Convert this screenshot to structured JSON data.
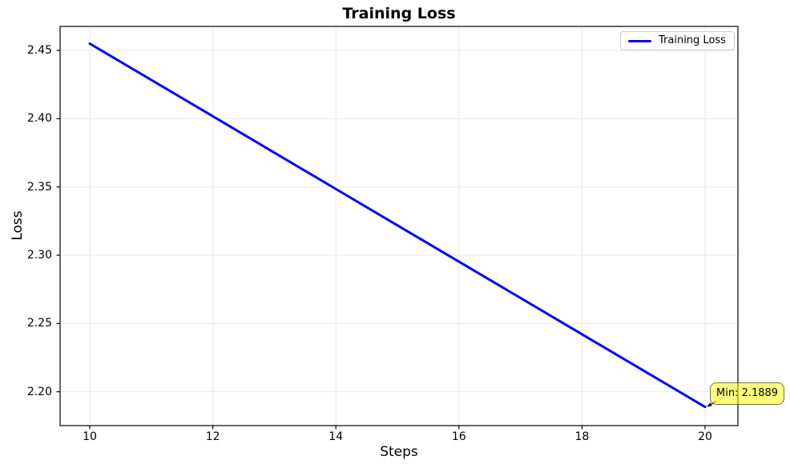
{
  "chart_data": {
    "type": "line",
    "title": "Training Loss",
    "xlabel": "Steps",
    "ylabel": "Loss",
    "series": [
      {
        "name": "Training Loss",
        "color": "#0000ff",
        "x": [
          10,
          12,
          14,
          16,
          18,
          20
        ],
        "y": [
          2.455,
          2.4018,
          2.3485,
          2.2953,
          2.2421,
          2.1889
        ]
      }
    ],
    "xlim": [
      9.518,
      20.534
    ],
    "ylim": [
      2.1752,
      2.4676
    ],
    "xticks": {
      "values": [
        10,
        12,
        14,
        16,
        18,
        20
      ],
      "labels": [
        "10",
        "12",
        "14",
        "16",
        "18",
        "20"
      ]
    },
    "yticks": {
      "values": [
        2.2,
        2.25,
        2.3,
        2.35,
        2.4,
        2.45
      ],
      "labels": [
        "2.20",
        "2.25",
        "2.30",
        "2.35",
        "2.40",
        "2.45"
      ]
    },
    "grid": true,
    "legend": {
      "position": "upper right",
      "label": "Training Loss",
      "line_color": "#0000ff"
    },
    "annotation": {
      "text": "Min: 2.1889",
      "x": 20,
      "y": 2.1889,
      "box_fill": "#ffff00",
      "box_alpha": 0.5,
      "border_color": "#000000",
      "arrow_color": "#000000"
    },
    "style": {
      "grid_color": "#e8e8e8",
      "spine_color": "#000000",
      "background": "#ffffff",
      "line_width": 3
    }
  }
}
